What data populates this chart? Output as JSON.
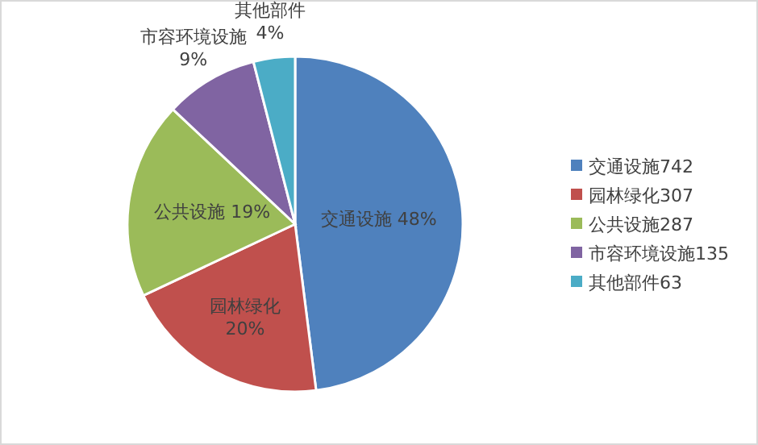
{
  "chart_data": {
    "type": "pie",
    "categories": [
      "交通设施",
      "园林绿化",
      "公共设施",
      "市容环境设施",
      "其他部件"
    ],
    "values": [
      48,
      20,
      19,
      9,
      4
    ],
    "value_labels": [
      "48%",
      "20%",
      "19%",
      "9%",
      "4%"
    ],
    "colors": [
      "#4f81bd",
      "#c0504d",
      "#9bbb59",
      "#8064a2",
      "#4bacc6"
    ],
    "annotations": [
      "742",
      "307",
      "287",
      "135",
      "63"
    ],
    "legend": "right"
  }
}
